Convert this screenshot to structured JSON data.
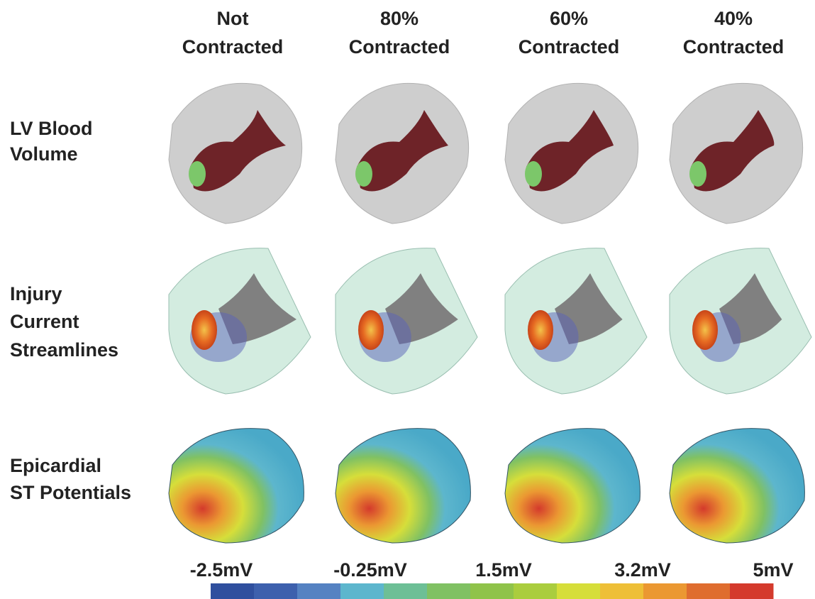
{
  "columns": [
    [
      "Not",
      "Contracted"
    ],
    [
      "80%",
      "Contracted"
    ],
    [
      "60%",
      "Contracted"
    ],
    [
      "40%",
      "Contracted"
    ]
  ],
  "rows": [
    [
      "LV Blood",
      "Volume"
    ],
    [
      "Injury",
      "Current",
      "Streamlines"
    ],
    [
      "Epicardial",
      "ST Potentials"
    ]
  ],
  "colorbar": {
    "labels": [
      "-2.5mV",
      "-0.25mV",
      "1.5mV",
      "3.2mV",
      "5mV"
    ],
    "colors": [
      "#2f4f9e",
      "#3d60ad",
      "#5582c2",
      "#5db6cd",
      "#6dbf96",
      "#80c163",
      "#8fc34a",
      "#aacd3e",
      "#d6de3a",
      "#eebf37",
      "#eb9832",
      "#df6d2f",
      "#d43a2c"
    ]
  }
}
